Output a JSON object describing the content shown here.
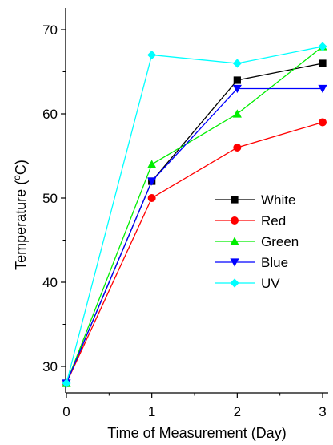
{
  "chart_data": {
    "type": "line",
    "title": "",
    "xlabel": "Time of Measurement (Day)",
    "ylabel_main": "Temperature (",
    "ylabel_sup": "o",
    "ylabel_tail": "C)",
    "x": [
      0,
      1,
      2,
      3
    ],
    "xlim": [
      0,
      3
    ],
    "ylim": [
      27,
      73
    ],
    "xticks": [
      "0",
      "1",
      "2",
      "3"
    ],
    "yticks": [
      "30",
      "40",
      "50",
      "60",
      "70"
    ],
    "grid": false,
    "legend_position": "center-right",
    "series": [
      {
        "name": "White",
        "values": [
          28,
          52,
          64,
          66
        ],
        "color": "#000000",
        "marker": "square"
      },
      {
        "name": "Red",
        "values": [
          28,
          50,
          56,
          59
        ],
        "color": "#ff0000",
        "marker": "circle"
      },
      {
        "name": "Green",
        "values": [
          28,
          54,
          60,
          68
        ],
        "color": "#00ee00",
        "marker": "triangle-up"
      },
      {
        "name": "Blue",
        "values": [
          28,
          52,
          63,
          63
        ],
        "color": "#0000ff",
        "marker": "triangle-down"
      },
      {
        "name": "UV",
        "values": [
          28,
          67,
          66,
          68
        ],
        "color": "#00ffff",
        "marker": "diamond"
      }
    ]
  }
}
